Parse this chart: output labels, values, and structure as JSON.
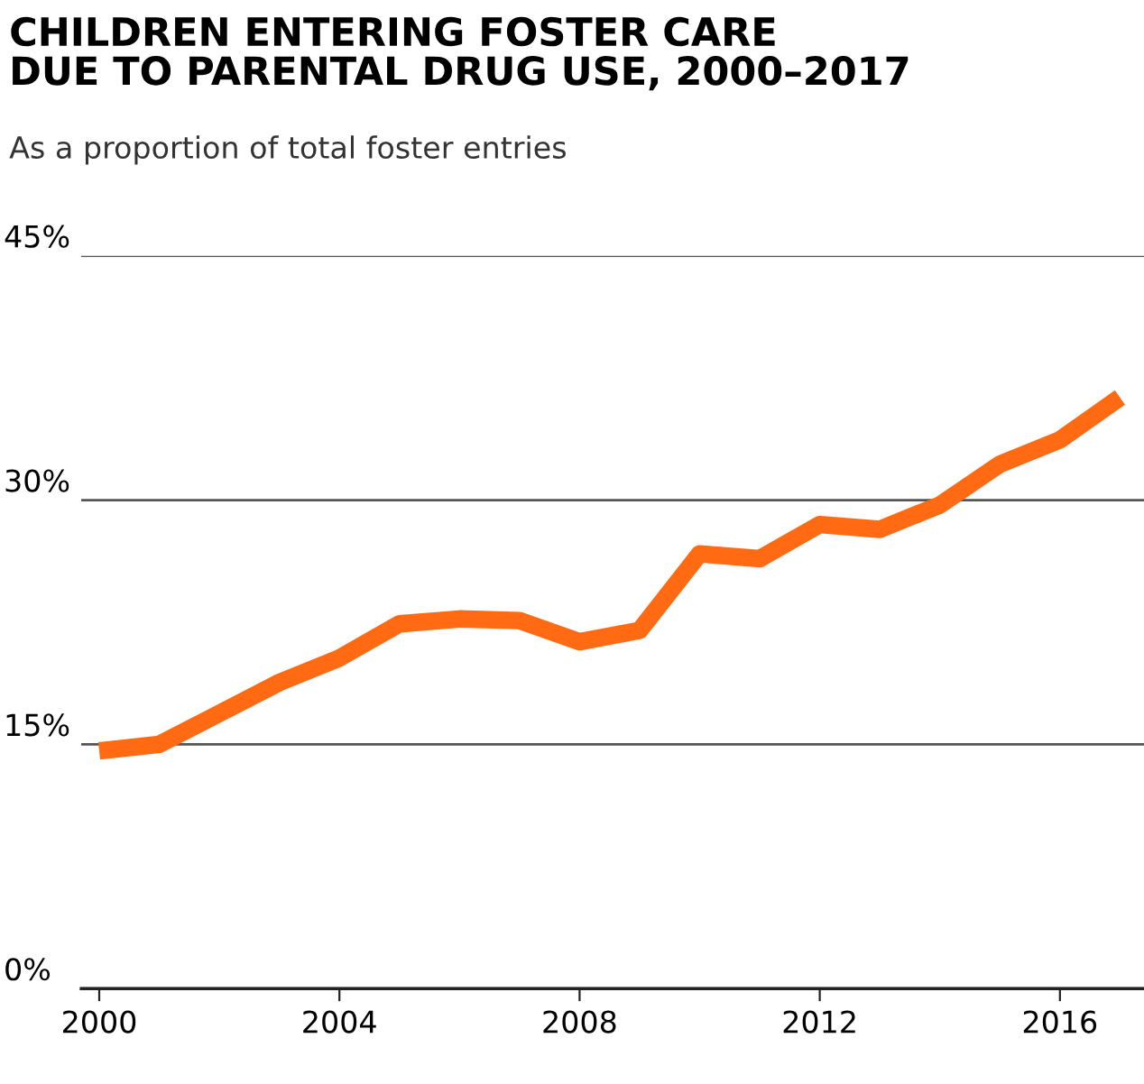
{
  "chart_data": {
    "type": "line",
    "title": "CHILDREN ENTERING FOSTER CARE\nDUE TO PARENTAL DRUG USE, 2000–2017",
    "subtitle": "As a proportion of total foster entries",
    "x": [
      2000,
      2001,
      2002,
      2003,
      2004,
      2005,
      2006,
      2007,
      2008,
      2009,
      2010,
      2011,
      2012,
      2013,
      2014,
      2015,
      2016,
      2017
    ],
    "series": [
      {
        "color": "#ff6a13",
        "values": [
          14.6,
          15.0,
          16.9,
          18.8,
          20.3,
          22.4,
          22.7,
          22.6,
          21.3,
          22.0,
          26.7,
          26.4,
          28.5,
          28.2,
          29.7,
          32.2,
          33.7,
          36.3
        ]
      }
    ],
    "xlim": [
      1999.7,
      2017.4
    ],
    "xticks": [
      2000,
      2004,
      2008,
      2012,
      2016
    ],
    "ylim": [
      0,
      45
    ],
    "yticks": [
      {
        "value": 0,
        "label": "0%"
      },
      {
        "value": 15,
        "label": "15%"
      },
      {
        "value": 30,
        "label": "30%"
      },
      {
        "value": 45,
        "label": "45%"
      }
    ],
    "grid": "y",
    "legend": false,
    "marker": "none",
    "line_style": "solid"
  }
}
